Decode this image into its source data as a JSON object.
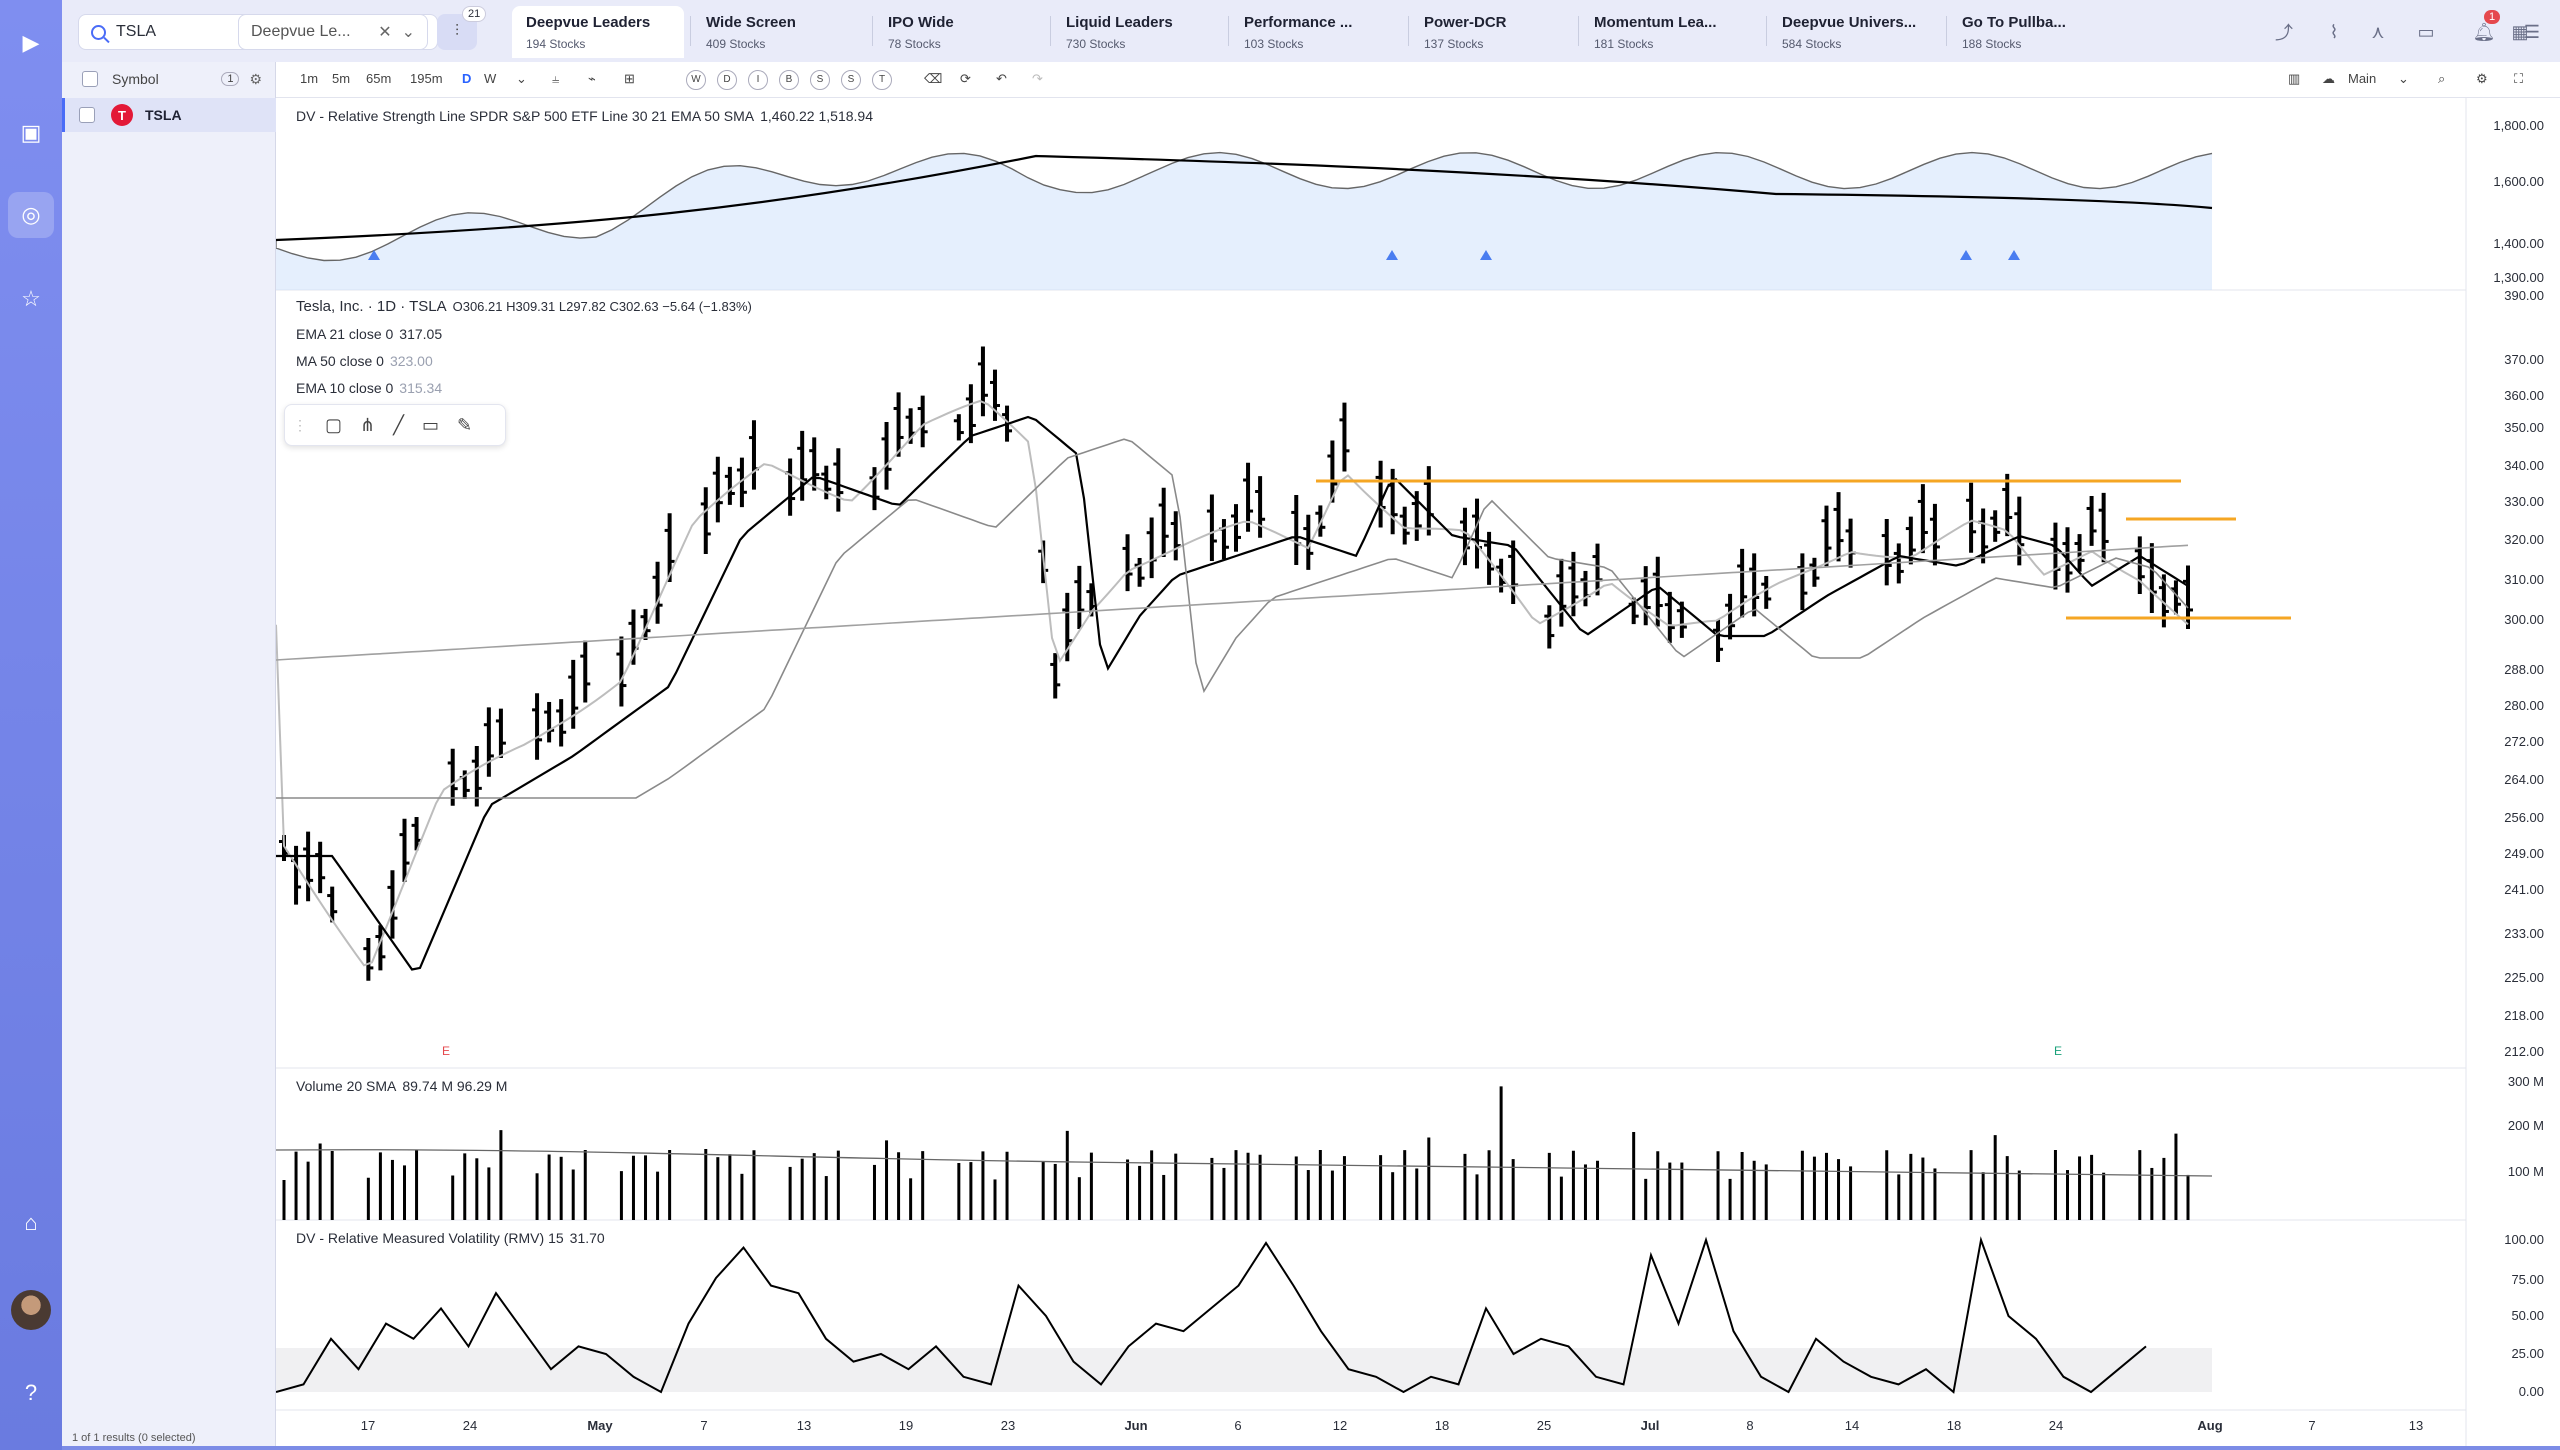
{
  "search": {
    "value": "TSLA",
    "watch_value": "Deepvue Le...",
    "filter_count": "21"
  },
  "tabs": [
    {
      "label": "Deepvue Leaders",
      "count": "194 Stocks"
    },
    {
      "label": "Wide Screen",
      "count": "409 Stocks"
    },
    {
      "label": "IPO Wide",
      "count": "78 Stocks"
    },
    {
      "label": "Liquid Leaders",
      "count": "730 Stocks"
    },
    {
      "label": "Performance ...",
      "count": "103 Stocks"
    },
    {
      "label": "Power-DCR",
      "count": "137 Stocks"
    },
    {
      "label": "Momentum Lea...",
      "count": "181 Stocks"
    },
    {
      "label": "Deepvue Univers...",
      "count": "584 Stocks"
    },
    {
      "label": "Go To Pullba...",
      "count": "188 Stocks"
    }
  ],
  "notifications": "1",
  "watchlist": {
    "header": "Symbol",
    "header_count": "1",
    "symbol": "TSLA",
    "logo_letter": "T",
    "footer": "1 of 1 results (0 selected)"
  },
  "toolbar": {
    "intervals": [
      "1m",
      "5m",
      "65m",
      "195m",
      "D",
      "W"
    ],
    "selected_interval": "D",
    "letters": [
      "W",
      "D",
      "I",
      "B",
      "S",
      "S",
      "T"
    ],
    "layout_label": "Main"
  },
  "rs_panel": {
    "legend": "DV - Relative Strength Line SPDR S&P 500 ETF Line 30 21 EMA 50 SMA",
    "values": "1,460.22  1,518.94",
    "ticks": [
      "1,800.00",
      "1,600.00",
      "1,400.00",
      "1,300.00"
    ]
  },
  "price_panel": {
    "title": "Tesla, Inc. · 1D · TSLA",
    "ohlc": "O306.21  H309.31  L297.82  C302.63  −5.64 (−1.83%)",
    "ema21_label": "EMA 21 close 0",
    "ema21_value": "317.05",
    "ma50_label": "MA 50 close 0",
    "ma50_value": "323.00",
    "ema10_label": "EMA 10 close 0",
    "ema10_value": "315.34",
    "ticks": [
      "390.00",
      "370.00",
      "360.00",
      "350.00",
      "340.00",
      "330.00",
      "320.00",
      "310.00",
      "300.00",
      "288.00",
      "280.00",
      "272.00",
      "264.00",
      "256.00",
      "249.00",
      "241.00",
      "233.00",
      "225.00",
      "218.00",
      "212.00"
    ],
    "earnings_marker": "E"
  },
  "volume_panel": {
    "legend": "Volume 20 SMA",
    "values": "89.74 M  96.29 M",
    "ticks": [
      "300 M",
      "200 M",
      "100 M"
    ]
  },
  "rmv_panel": {
    "legend": "DV - Relative Measured Volatility (RMV) 15",
    "value": "31.70",
    "ticks": [
      "100.00",
      "75.00",
      "50.00",
      "25.00",
      "0.00"
    ]
  },
  "date_ticks": [
    "17",
    "24",
    "May",
    "7",
    "13",
    "19",
    "23",
    "Jun",
    "6",
    "12",
    "18",
    "25",
    "Jul",
    "8",
    "14",
    "18",
    "24",
    "Aug",
    "7",
    "13"
  ],
  "colors": {
    "accent": "#2962ff",
    "bars": "#000000",
    "ma_line": "#000000",
    "orange_levels": "#f5a623",
    "rs_fill": "#b4d4fb"
  }
}
